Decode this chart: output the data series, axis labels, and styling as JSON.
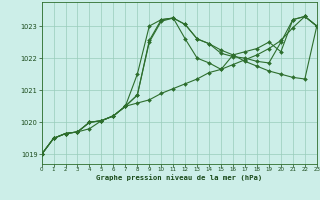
{
  "bg_color": "#cceee8",
  "grid_color": "#99ccbb",
  "line_color": "#2d6e2d",
  "marker_color": "#2d6e2d",
  "xlabel": "Graphe pression niveau de la mer (hPa)",
  "xlim": [
    0,
    23
  ],
  "ylim": [
    1018.7,
    1023.75
  ],
  "yticks": [
    1019,
    1020,
    1021,
    1022,
    1023
  ],
  "xticks": [
    0,
    1,
    2,
    3,
    4,
    5,
    6,
    7,
    8,
    9,
    10,
    11,
    12,
    13,
    14,
    15,
    16,
    17,
    18,
    19,
    20,
    21,
    22,
    23
  ],
  "series": [
    [
      1019.0,
      1019.5,
      1019.65,
      1019.7,
      1019.8,
      1020.05,
      1020.2,
      1020.5,
      1020.85,
      1022.55,
      1023.2,
      1023.25,
      1023.05,
      1022.6,
      1022.45,
      1022.25,
      1022.1,
      1021.9,
      1021.75,
      1021.6,
      1021.5,
      1021.4,
      1021.35,
      1023.0
    ],
    [
      1019.0,
      1019.5,
      1019.65,
      1019.7,
      1020.0,
      1020.05,
      1020.2,
      1020.5,
      1021.5,
      1023.0,
      1023.2,
      1023.25,
      1022.6,
      1022.0,
      1021.85,
      1021.65,
      1022.1,
      1022.2,
      1022.3,
      1022.5,
      1022.2,
      1023.2,
      1023.3,
      1023.0
    ],
    [
      1019.0,
      1019.5,
      1019.65,
      1019.7,
      1020.0,
      1020.05,
      1020.2,
      1020.5,
      1020.85,
      1022.5,
      1023.15,
      1023.25,
      1023.05,
      1022.6,
      1022.45,
      1022.15,
      1022.05,
      1022.0,
      1021.9,
      1021.85,
      1022.5,
      1023.2,
      1023.3,
      1023.0
    ],
    [
      1019.0,
      1019.5,
      1019.65,
      1019.7,
      1020.0,
      1020.05,
      1020.2,
      1020.5,
      1020.6,
      1020.7,
      1020.9,
      1021.05,
      1021.2,
      1021.35,
      1021.55,
      1021.65,
      1021.8,
      1021.95,
      1022.1,
      1022.3,
      1022.55,
      1022.95,
      1023.3,
      1023.0
    ]
  ]
}
